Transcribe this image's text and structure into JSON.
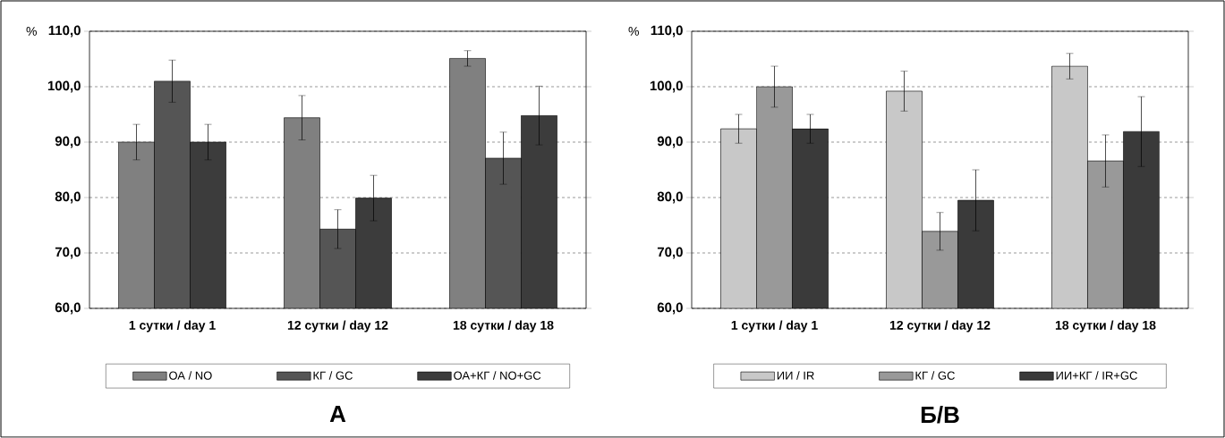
{
  "chart_data": [
    {
      "type": "bar",
      "title": "А",
      "ylabel": "%",
      "categories": [
        "1 сутки / day 1",
        "12 сутки / day 12",
        "18 сутки / day 18"
      ],
      "series": [
        {
          "name": "ОА / NO",
          "color": "#808080",
          "values": [
            90.0,
            94.4,
            105.1
          ],
          "errors": [
            3.2,
            4.0,
            1.4
          ]
        },
        {
          "name": "КГ / GC",
          "color": "#555555",
          "values": [
            101.0,
            74.3,
            87.1
          ],
          "errors": [
            3.8,
            3.5,
            4.7
          ]
        },
        {
          "name": "ОА+КГ / NO+GC",
          "color": "#3c3c3c",
          "values": [
            90.0,
            79.9,
            94.8
          ],
          "errors": [
            3.2,
            4.1,
            5.3
          ]
        }
      ],
      "ylim": [
        60,
        110
      ],
      "yticks": [
        {
          "value": 60,
          "label": "60,0"
        },
        {
          "value": 70,
          "label": "70,0"
        },
        {
          "value": 80,
          "label": "80,0"
        },
        {
          "value": 90,
          "label": "90,0"
        },
        {
          "value": 100,
          "label": "100,0"
        },
        {
          "value": 110,
          "label": "110,0"
        }
      ],
      "grid": "y",
      "legend": "bottom"
    },
    {
      "type": "bar",
      "title": "Б/В",
      "ylabel": "%",
      "categories": [
        "1 сутки / day 1",
        "12 сутки / day 12",
        "18 сутки / day 18"
      ],
      "series": [
        {
          "name": "ИИ / IR",
          "color": "#c8c8c8",
          "values": [
            92.4,
            99.2,
            103.7
          ],
          "errors": [
            2.6,
            3.6,
            2.3
          ]
        },
        {
          "name": "КГ / GC",
          "color": "#999999",
          "values": [
            100.0,
            73.9,
            86.6
          ],
          "errors": [
            3.7,
            3.4,
            4.7
          ]
        },
        {
          "name": "ИИ+КГ / IR+GC",
          "color": "#3a3a3a",
          "values": [
            92.4,
            79.5,
            91.9
          ],
          "errors": [
            2.6,
            5.5,
            6.3
          ]
        }
      ],
      "ylim": [
        60,
        110
      ],
      "yticks": [
        {
          "value": 60,
          "label": "60,0"
        },
        {
          "value": 70,
          "label": "70,0"
        },
        {
          "value": 80,
          "label": "80,0"
        },
        {
          "value": 90,
          "label": "90,0"
        },
        {
          "value": 100,
          "label": "100,0"
        },
        {
          "value": 110,
          "label": "110,0"
        }
      ],
      "grid": "y",
      "legend": "bottom"
    }
  ]
}
